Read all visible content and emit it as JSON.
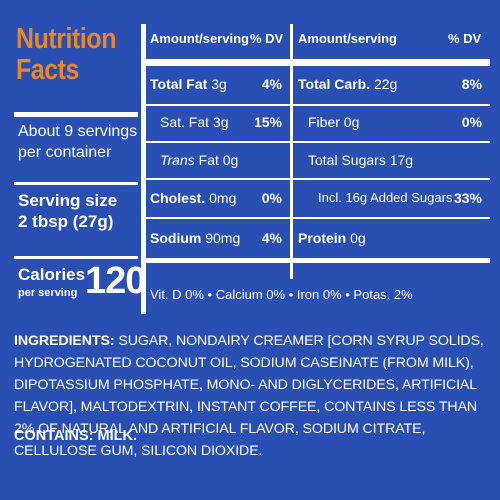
{
  "title_line1": "Nutrition",
  "title_line2": "Facts",
  "servings_line1": "About 9 servings",
  "servings_line2": "per container",
  "serving_size_label": "Serving size",
  "serving_size_value": "2 tbsp (27g)",
  "calories_label": "Calories",
  "calories_sub": "per serving",
  "calories_value": "120",
  "header_amount": "Amount/serving",
  "header_dv": "% DV",
  "left_rows": [
    {
      "label": "Total Fat",
      "amount": "3g",
      "dv": "4%"
    },
    {
      "label": "Sat. Fat",
      "amount": "3g",
      "dv": "15%"
    },
    {
      "label": "Trans",
      "label_rest": "Fat 0g",
      "dv": ""
    },
    {
      "label": "Cholest.",
      "amount": "0mg",
      "dv": "0%"
    },
    {
      "label": "Sodium",
      "amount": "90mg",
      "dv": "4%"
    }
  ],
  "right_rows": [
    {
      "label": "Total Carb.",
      "amount": "22g",
      "dv": "8%"
    },
    {
      "label": "Fiber",
      "amount": "0g",
      "dv": "0%"
    },
    {
      "label": "Total Sugars",
      "amount": "17g",
      "dv": ""
    },
    {
      "label": "Incl. 16g Added Sugars",
      "amount": "",
      "dv": "33%"
    },
    {
      "label": "Protein",
      "amount": "0g",
      "dv": ""
    }
  ],
  "vitamins": "Vit. D 0% • Calcium 0% • Iron 0% • Potas. 2%",
  "ingredients_label": "INGREDIENTS:",
  "ingredients_text": "SUGAR, NONDAIRY CREAMER [CORN SYRUP SOLIDS, HYDROGENATED COCONUT OIL, SODIUM CASEINATE (FROM MILK), DIPOTASSIUM PHOSPHATE, MONO- AND DIGLYCERIDES, ARTIFICIAL FLAVOR], MALTODEXTRIN, INSTANT COFFEE, CONTAINS LESS THAN 2% OF NATURAL AND ARTIFICIAL FLAVOR, SODIUM CITRATE, CELLULOSE GUM, SILICON DIOXIDE.",
  "contains": "CONTAINS: MILK.",
  "colors": {
    "background": "#2a4fb2",
    "title": "#e8862a",
    "text": "#ffffff"
  }
}
